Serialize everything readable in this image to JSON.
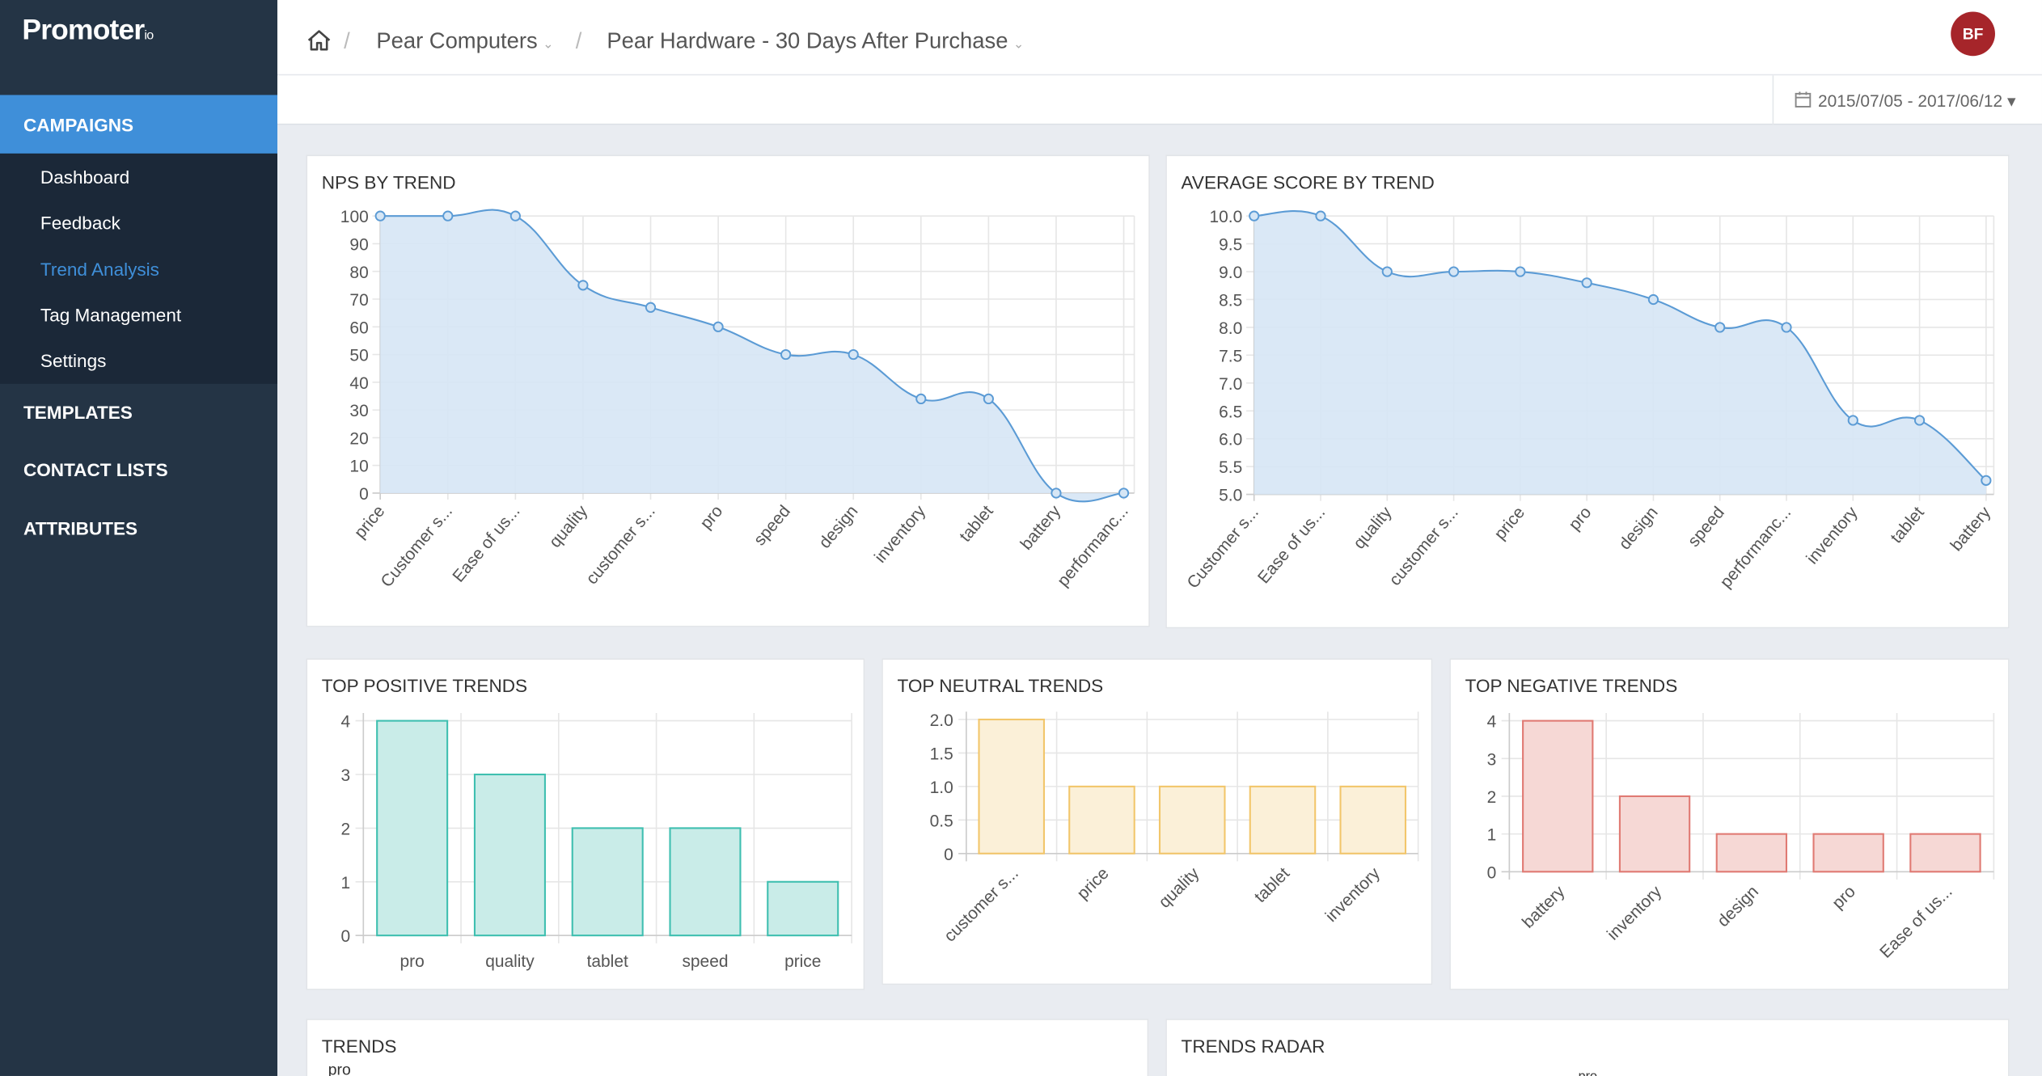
{
  "app": {
    "logo": "Promoter",
    "logo_suffix": "io"
  },
  "sidebar": {
    "campaigns": "CAMPAIGNS",
    "items": [
      {
        "label": "Dashboard"
      },
      {
        "label": "Feedback"
      },
      {
        "label": "Trend Analysis"
      },
      {
        "label": "Tag Management"
      },
      {
        "label": "Settings"
      }
    ],
    "sections": [
      "TEMPLATES",
      "CONTACT LISTS",
      "ATTRIBUTES"
    ]
  },
  "header": {
    "breadcrumbs": [
      "Pear Computers",
      "Pear Hardware - 30 Days After Purchase"
    ],
    "user_initials": "BF",
    "date_range": "2015/07/05 - 2017/06/12"
  },
  "colors": {
    "accent": "#3f8fd9",
    "line": "#5b9bd5",
    "area": "#d6e6f5",
    "positive_fill": "#c9ece8",
    "positive_stroke": "#3fbfb0",
    "neutral_fill": "#fbf0d8",
    "neutral_stroke": "#f2c66b",
    "negative_fill": "#f6d8d5",
    "negative_stroke": "#e07a73"
  },
  "cards": {
    "nps": "NPS BY TREND",
    "avg": "AVERAGE SCORE BY TREND",
    "positive": "TOP POSITIVE TRENDS",
    "neutral": "TOP NEUTRAL TRENDS",
    "negative": "TOP NEGATIVE TRENDS",
    "trends": "TRENDS",
    "radar": "TRENDS RADAR",
    "trends_first_label": "pro",
    "radar_first_label": "pro"
  },
  "chart_data": [
    {
      "id": "nps",
      "type": "area",
      "categories": [
        "price",
        "Customer s...",
        "Ease of us...",
        "quality",
        "customer s...",
        "pro",
        "speed",
        "design",
        "inventory",
        "tablet",
        "battery",
        "performanc..."
      ],
      "values": [
        100,
        100,
        100,
        75,
        67,
        60,
        50,
        50,
        34,
        34,
        0,
        0
      ],
      "yticks": [
        "0",
        "10",
        "20",
        "30",
        "40",
        "50",
        "60",
        "70",
        "80",
        "90",
        "100"
      ],
      "ylim": [
        0,
        100
      ]
    },
    {
      "id": "avg",
      "type": "area",
      "categories": [
        "Customer s...",
        "Ease of us...",
        "quality",
        "customer s...",
        "price",
        "pro",
        "design",
        "speed",
        "performanc...",
        "inventory",
        "tablet",
        "battery"
      ],
      "values": [
        10.0,
        10.0,
        9.0,
        9.0,
        9.0,
        8.8,
        8.5,
        8.0,
        8.0,
        6.33,
        6.33,
        5.25
      ],
      "yticks": [
        "5.0",
        "5.5",
        "6.0",
        "6.5",
        "7.0",
        "7.5",
        "8.0",
        "8.5",
        "9.0",
        "9.5",
        "10.0"
      ],
      "ylim": [
        5,
        10
      ]
    },
    {
      "id": "positive",
      "type": "bar",
      "categories": [
        "pro",
        "quality",
        "tablet",
        "speed",
        "price"
      ],
      "values": [
        4,
        3,
        2,
        2,
        1
      ],
      "yticks": [
        "0",
        "1",
        "2",
        "3",
        "4"
      ],
      "ylim": [
        0,
        4
      ]
    },
    {
      "id": "neutral",
      "type": "bar",
      "categories": [
        "customer s...",
        "price",
        "quality",
        "tablet",
        "inventory"
      ],
      "values": [
        2,
        1,
        1,
        1,
        1
      ],
      "yticks": [
        "0",
        "0.5",
        "1.0",
        "1.5",
        "2.0"
      ],
      "ylim": [
        0,
        2
      ]
    },
    {
      "id": "negative",
      "type": "bar",
      "categories": [
        "battery",
        "inventory",
        "design",
        "pro",
        "Ease of us..."
      ],
      "values": [
        4,
        2,
        1,
        1,
        1
      ],
      "yticks": [
        "0",
        "1",
        "2",
        "3",
        "4"
      ],
      "ylim": [
        0,
        4
      ]
    }
  ]
}
